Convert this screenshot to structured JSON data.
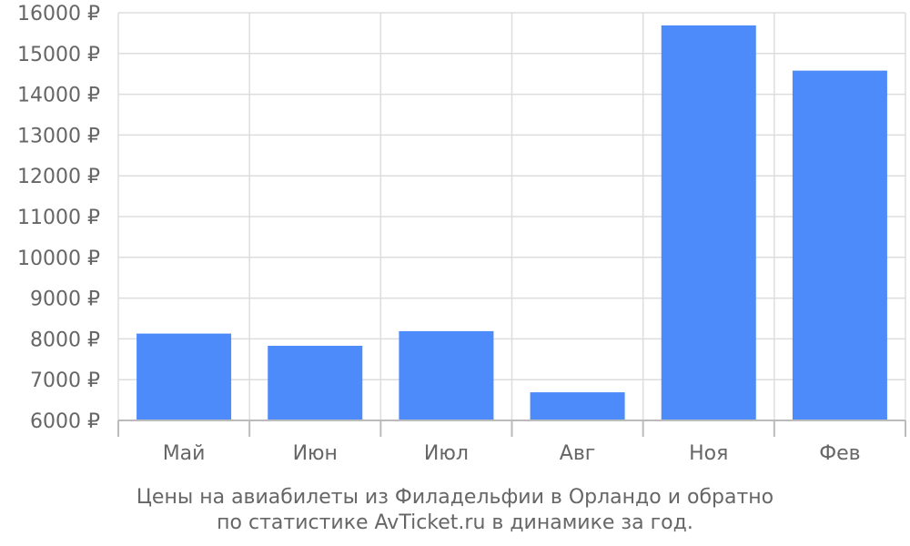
{
  "colors": {
    "bar": "#4d8afa",
    "grid": "#dddddd",
    "axis": "#bbbbbb",
    "text": "#666666",
    "background": "#ffffff"
  },
  "caption": {
    "line1": "Цены на авиабилеты из Филадельфии в Орландо и обратно",
    "line2": "по статистике AvTicket.ru в динамике за год."
  },
  "chart_data": {
    "type": "bar",
    "categories": [
      "Май",
      "Июн",
      "Июл",
      "Авг",
      "Ноя",
      "Фев"
    ],
    "values": [
      8130,
      7830,
      8190,
      6690,
      15690,
      14580
    ],
    "ylim": [
      6000,
      16000
    ],
    "yticks": [
      6000,
      7000,
      8000,
      9000,
      10000,
      11000,
      12000,
      13000,
      14000,
      15000,
      16000
    ],
    "ytick_labels": [
      "6000 ₽",
      "7000 ₽",
      "8000 ₽",
      "9000 ₽",
      "10000 ₽",
      "11000 ₽",
      "12000 ₽",
      "13000 ₽",
      "14000 ₽",
      "15000 ₽",
      "16000 ₽"
    ],
    "grid": true,
    "legend": "none"
  }
}
